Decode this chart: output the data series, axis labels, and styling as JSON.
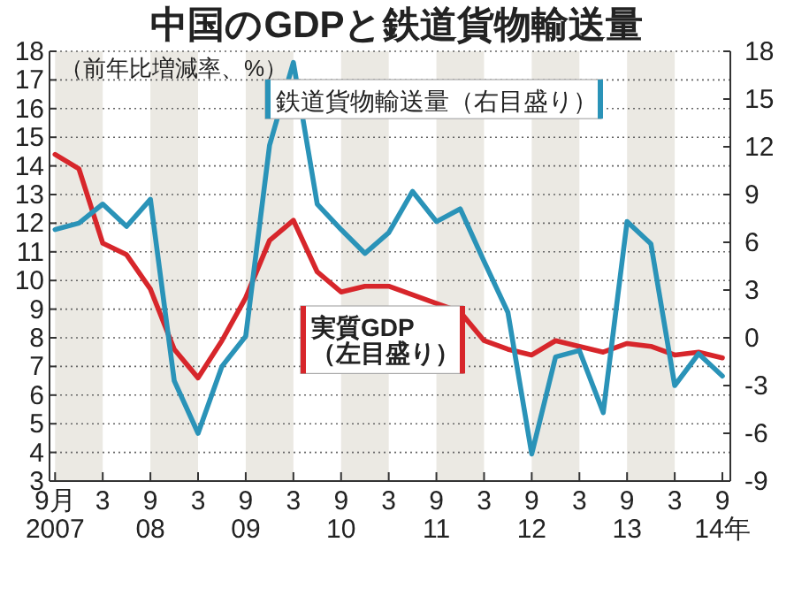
{
  "chart_data": {
    "type": "line",
    "title": "中国のGDPと鉄道貨物輸送量",
    "ylabel": "（前年比増減率、%）",
    "x": [
      "2007-09",
      "2007-12",
      "2008-03",
      "2008-06",
      "2008-09",
      "2008-12",
      "2009-03",
      "2009-06",
      "2009-09",
      "2009-12",
      "2010-03",
      "2010-06",
      "2010-09",
      "2010-12",
      "2011-03",
      "2011-06",
      "2011-09",
      "2011-12",
      "2012-03",
      "2012-06",
      "2012-09",
      "2012-12",
      "2013-03",
      "2013-06",
      "2013-09",
      "2013-12",
      "2014-03",
      "2014-06",
      "2014-09"
    ],
    "series": [
      {
        "name": "実質GDP\n（左目盛り）",
        "color": "#d7262b",
        "values": [
          14.4,
          13.9,
          11.3,
          10.9,
          9.7,
          7.6,
          6.6,
          7.9,
          9.4,
          11.4,
          12.1,
          10.3,
          9.6,
          9.8,
          9.8,
          9.5,
          9.2,
          8.9,
          7.9,
          7.6,
          7.4,
          7.9,
          7.7,
          7.5,
          7.8,
          7.7,
          7.4,
          7.5,
          7.3
        ]
      },
      {
        "name": "鉄道貨物輸送量（右目盛り）",
        "color": "#2a93b8",
        "axis": "y2",
        "values": [
          6.8,
          7.2,
          8.4,
          7.0,
          8.7,
          -2.7,
          -6.0,
          -1.8,
          0.1,
          12.1,
          17.3,
          8.4,
          6.8,
          5.3,
          6.6,
          9.2,
          7.3,
          8.1,
          4.8,
          1.6,
          -7.3,
          -1.2,
          -0.8,
          -4.7,
          7.3,
          5.9,
          -3.0,
          -1.0,
          -2.4
        ]
      }
    ],
    "xlim": [
      "2007-08-10",
      "2014-10-01"
    ],
    "xticks": [
      {
        "value": "2007-09",
        "label": "9月\n2007"
      },
      {
        "value": "2008-03",
        "label": "3"
      },
      {
        "value": "2008-09",
        "label": "9\n08"
      },
      {
        "value": "2009-03",
        "label": "3"
      },
      {
        "value": "2009-09",
        "label": "9\n09"
      },
      {
        "value": "2010-03",
        "label": "3"
      },
      {
        "value": "2010-09",
        "label": "9\n10"
      },
      {
        "value": "2011-03",
        "label": "3"
      },
      {
        "value": "2011-09",
        "label": "9\n11"
      },
      {
        "value": "2012-03",
        "label": "3"
      },
      {
        "value": "2012-09",
        "label": "9\n12"
      },
      {
        "value": "2013-03",
        "label": "3"
      },
      {
        "value": "2013-09",
        "label": "9\n13"
      },
      {
        "value": "2014-03",
        "label": "3"
      },
      {
        "value": "2014-09",
        "label": "9\n14年"
      }
    ],
    "ylim": [
      3,
      18
    ],
    "yticks": [
      3,
      4,
      5,
      6,
      7,
      8,
      9,
      10,
      11,
      12,
      13,
      14,
      15,
      16,
      17,
      18
    ],
    "y2lim": [
      -9,
      18
    ],
    "y2ticks": [
      -9,
      -6,
      -3,
      0,
      3,
      6,
      9,
      12,
      15,
      18
    ],
    "bands": [
      {
        "axis": "x",
        "from": "2007-09",
        "to": "2008-03",
        "color": "#ebe9e3"
      },
      {
        "axis": "x",
        "from": "2008-09",
        "to": "2009-03",
        "color": "#ebe9e3"
      },
      {
        "axis": "x",
        "from": "2009-09",
        "to": "2010-03",
        "color": "#ebe9e3"
      },
      {
        "axis": "x",
        "from": "2010-09",
        "to": "2011-03",
        "color": "#ebe9e3"
      },
      {
        "axis": "x",
        "from": "2011-09",
        "to": "2012-03",
        "color": "#ebe9e3"
      },
      {
        "axis": "x",
        "from": "2012-09",
        "to": "2013-03",
        "color": "#ebe9e3"
      },
      {
        "axis": "x",
        "from": "2013-09",
        "to": "2014-03",
        "color": "#ebe9e3"
      }
    ],
    "grid": "y",
    "legend": "top",
    "marker": "none",
    "line_style": "solid"
  }
}
